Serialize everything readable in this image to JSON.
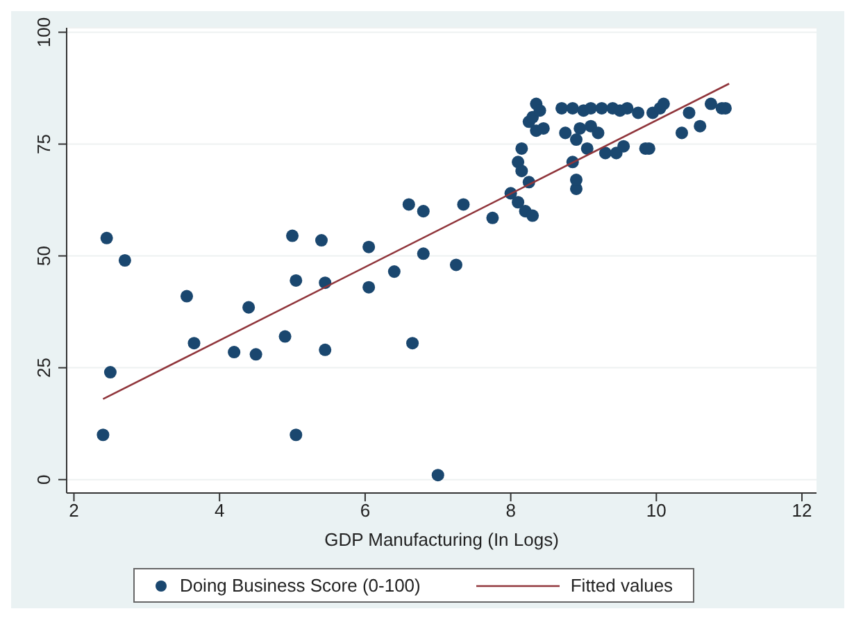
{
  "chart_data": {
    "type": "scatter",
    "xlabel": "GDP Manufacturing (In Logs)",
    "xlim": [
      1.9,
      12.2
    ],
    "xticks": [
      2,
      4,
      6,
      8,
      10,
      12
    ],
    "ylim": [
      -3,
      101
    ],
    "yticks": [
      0,
      25,
      50,
      75,
      100
    ],
    "grid": "y",
    "legend": "bottom",
    "series": [
      {
        "name": "Doing Business Score (0-100)",
        "marker": "circle",
        "color": "#1a476f",
        "x": [
          2.4,
          2.45,
          2.5,
          2.7,
          3.55,
          3.65,
          4.2,
          4.4,
          4.5,
          4.9,
          5.0,
          5.05,
          5.05,
          5.4,
          5.45,
          5.45,
          6.05,
          6.05,
          6.4,
          6.6,
          6.65,
          6.8,
          6.8,
          7.0,
          7.25,
          7.35,
          7.75,
          8.0,
          8.1,
          8.1,
          8.15,
          8.15,
          8.2,
          8.25,
          8.3,
          8.25,
          8.3,
          8.35,
          8.35,
          8.4,
          8.45,
          8.7,
          8.75,
          8.85,
          8.85,
          8.9,
          8.9,
          8.9,
          8.95,
          9.0,
          9.05,
          9.1,
          9.1,
          9.2,
          9.25,
          9.3,
          9.4,
          9.45,
          9.5,
          9.55,
          9.6,
          9.75,
          9.85,
          9.9,
          9.95,
          10.05,
          10.1,
          10.35,
          10.45,
          10.6,
          10.75,
          10.9,
          10.95
        ],
        "values": [
          10,
          54,
          24,
          49,
          41,
          30.5,
          28.5,
          38.5,
          28,
          32,
          54.5,
          44.5,
          10,
          53.5,
          29,
          44,
          52,
          43,
          46.5,
          61.5,
          30.5,
          60,
          50.5,
          1,
          48,
          61.5,
          58.5,
          64,
          62,
          71,
          74,
          69,
          60,
          66.5,
          59,
          80,
          81,
          78,
          84,
          82.5,
          78.5,
          83,
          77.5,
          83,
          71,
          65,
          67,
          76,
          78.5,
          82.5,
          74,
          79,
          83,
          77.5,
          83,
          73,
          83,
          73,
          82.5,
          74.5,
          83,
          82,
          74,
          74,
          82,
          83,
          84,
          77.5,
          82,
          79,
          84,
          83,
          83
        ]
      },
      {
        "name": "Fitted values",
        "type": "line",
        "color": "#90353b",
        "x": [
          2.4,
          11
        ],
        "values": [
          18,
          88.5
        ]
      }
    ]
  }
}
